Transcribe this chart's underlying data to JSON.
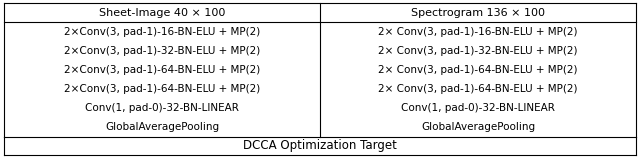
{
  "figsize": [
    6.4,
    1.58
  ],
  "dpi": 100,
  "background_color": "#ffffff",
  "col1_header": "Sheet-Image 40 × 100",
  "col2_header": "Spectrogram 136 × 100",
  "col1_rows": [
    "2×Conv(3, pad-1)-16-BN-ELU + MP(2)",
    "2×Conv(3, pad-1)-32-BN-ELU + MP(2)",
    "2×Conv(3, pad-1)-64-BN-ELU + MP(2)",
    "2×Conv(3, pad-1)-64-BN-ELU + MP(2)",
    "Conv(1, pad-0)-32-BN-LINEAR",
    "GlobalAveragePooling"
  ],
  "col2_rows": [
    "2× Conv(3, pad-1)-16-BN-ELU + MP(2)",
    "2× Conv(3, pad-1)-32-BN-ELU + MP(2)",
    "2× Conv(3, pad-1)-64-BN-ELU + MP(2)",
    "2× Conv(3, pad-1)-64-BN-ELU + MP(2)",
    "Conv(1, pad-0)-32-BN-LINEAR",
    "GlobalAveragePooling"
  ],
  "footer": "DCCA Optimization Target",
  "font_size": 7.5,
  "header_font_size": 8.0,
  "footer_font_size": 8.5,
  "text_color": "#000000",
  "border_color": "#000000",
  "line_width": 0.8
}
